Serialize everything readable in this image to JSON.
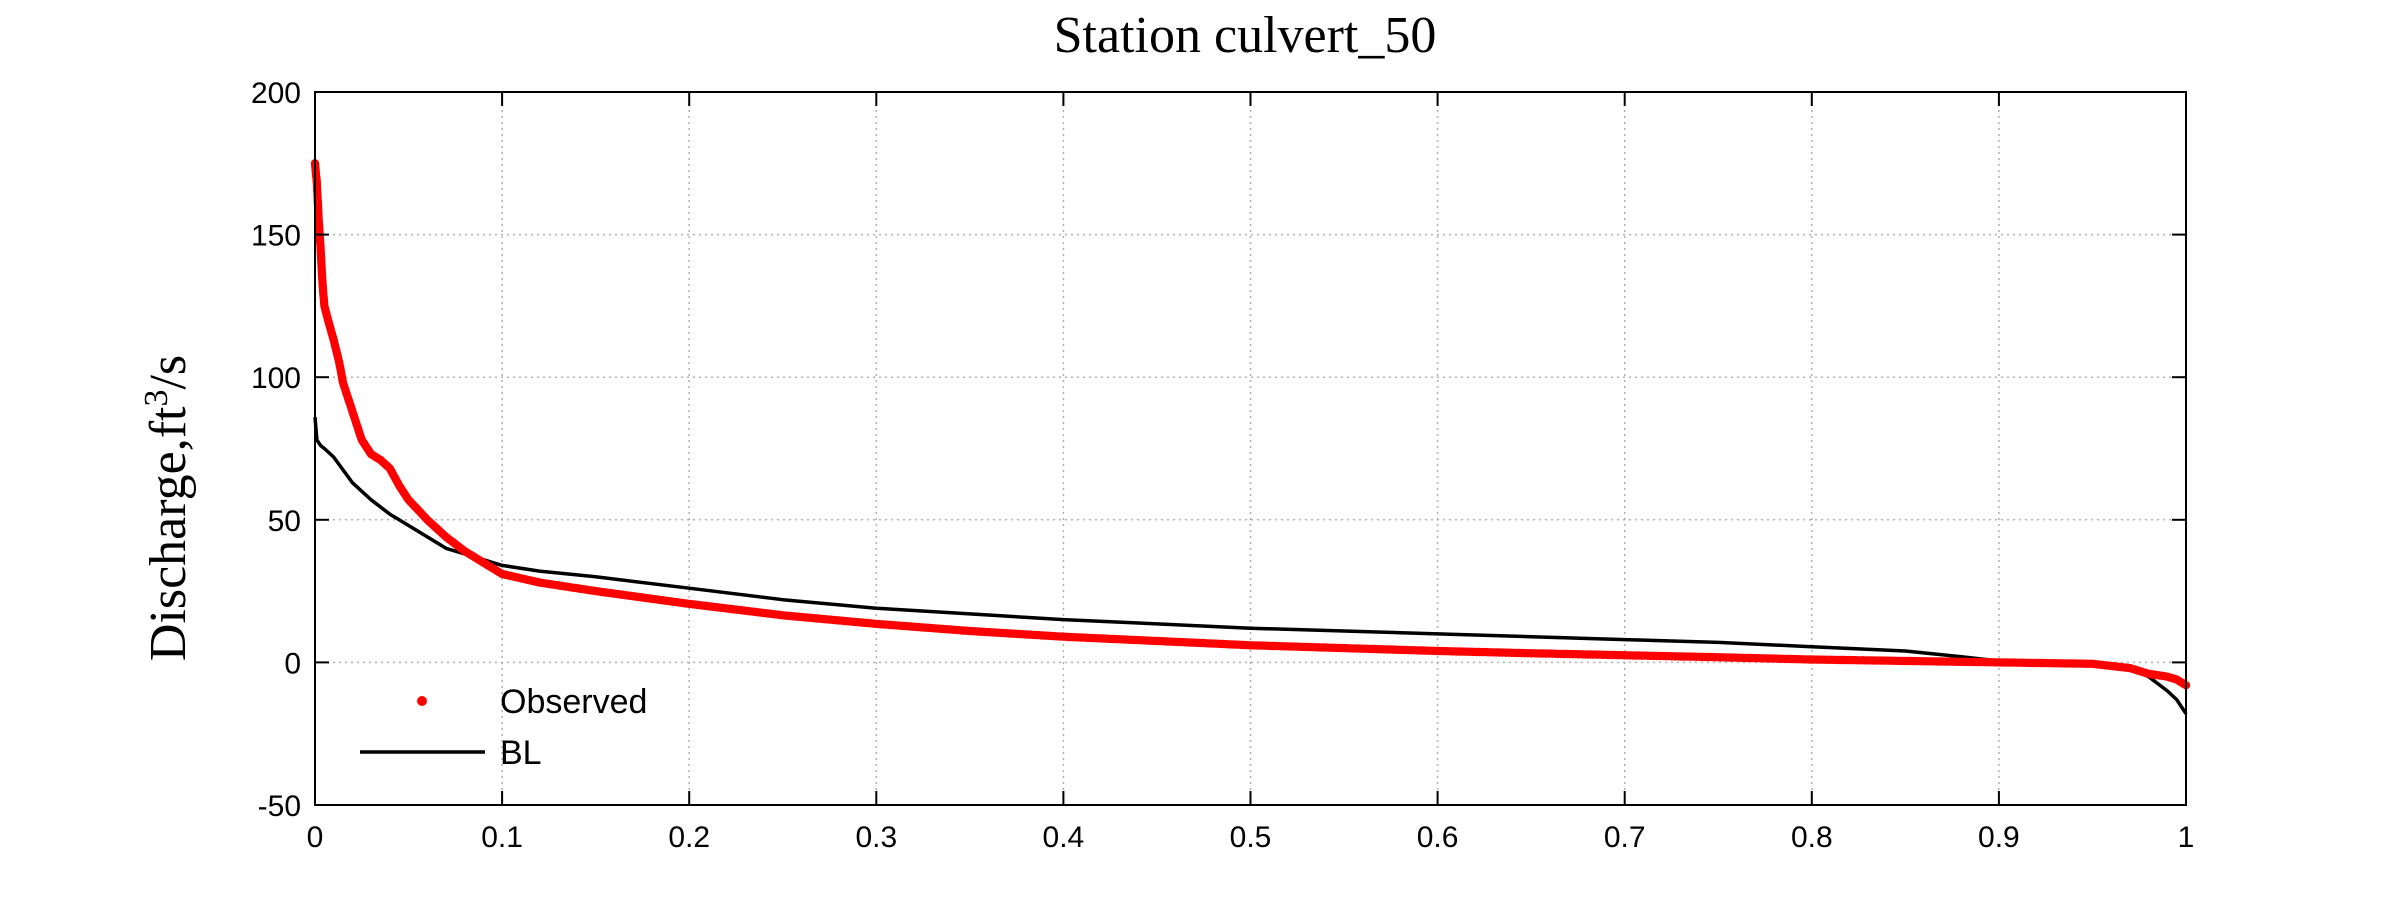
{
  "chart_data": {
    "type": "line",
    "title": "Station culvert_50",
    "xlabel": "",
    "ylabel": "Discharge,ft",
    "ylabel_superscript": "3",
    "ylabel_suffix": "/s",
    "xlim": [
      0,
      1
    ],
    "ylim": [
      -50,
      200
    ],
    "xticks": [
      0,
      0.1,
      0.2,
      0.3,
      0.4,
      0.5,
      0.6,
      0.7,
      0.8,
      0.9,
      1
    ],
    "xtick_labels": [
      "0",
      "0.1",
      "0.2",
      "0.3",
      "0.4",
      "0.5",
      "0.6",
      "0.7",
      "0.8",
      "0.9",
      "1"
    ],
    "yticks": [
      -50,
      0,
      50,
      100,
      150,
      200
    ],
    "ytick_labels": [
      "-50",
      "0",
      "50",
      "100",
      "150",
      "200"
    ],
    "grid": true,
    "legend_position": "bottom-left",
    "series": [
      {
        "name": "Observed",
        "style": "markers",
        "color": "#ff0000",
        "x": [
          0.0,
          0.001,
          0.002,
          0.003,
          0.004,
          0.005,
          0.007,
          0.01,
          0.013,
          0.015,
          0.02,
          0.025,
          0.03,
          0.035,
          0.04,
          0.045,
          0.05,
          0.06,
          0.07,
          0.08,
          0.09,
          0.1,
          0.12,
          0.15,
          0.2,
          0.25,
          0.3,
          0.35,
          0.4,
          0.45,
          0.5,
          0.55,
          0.6,
          0.65,
          0.7,
          0.75,
          0.8,
          0.85,
          0.9,
          0.95,
          0.97,
          0.98,
          0.99,
          0.995,
          1.0
        ],
        "y": [
          175,
          168,
          155,
          145,
          133,
          125,
          120,
          113,
          105,
          98,
          88,
          78,
          73,
          71,
          68,
          62,
          57,
          50,
          44,
          39,
          35,
          31,
          28,
          25,
          20.5,
          16.5,
          13.5,
          11,
          9,
          7.5,
          6,
          5,
          4,
          3.2,
          2.5,
          1.8,
          1,
          0.5,
          0,
          -0.5,
          -2,
          -4,
          -5,
          -6,
          -8
        ]
      },
      {
        "name": "BL",
        "style": "line",
        "color": "#000000",
        "x": [
          0.0,
          0.001,
          0.003,
          0.005,
          0.01,
          0.02,
          0.03,
          0.04,
          0.05,
          0.06,
          0.07,
          0.08,
          0.09,
          0.1,
          0.12,
          0.15,
          0.2,
          0.25,
          0.3,
          0.35,
          0.4,
          0.45,
          0.5,
          0.55,
          0.6,
          0.65,
          0.7,
          0.75,
          0.8,
          0.85,
          0.88,
          0.9,
          0.95,
          0.96,
          0.97,
          0.98,
          0.99,
          0.995,
          1.0
        ],
        "y": [
          86,
          78,
          76,
          75,
          72,
          63,
          57,
          52,
          48,
          44,
          40,
          38,
          36,
          34,
          32,
          30,
          26,
          22,
          19,
          17,
          15,
          13.5,
          12,
          11,
          10,
          9,
          8,
          7,
          5.5,
          4,
          2,
          0.5,
          0,
          -1,
          -2,
          -5,
          -10,
          -13,
          -18
        ]
      }
    ]
  }
}
